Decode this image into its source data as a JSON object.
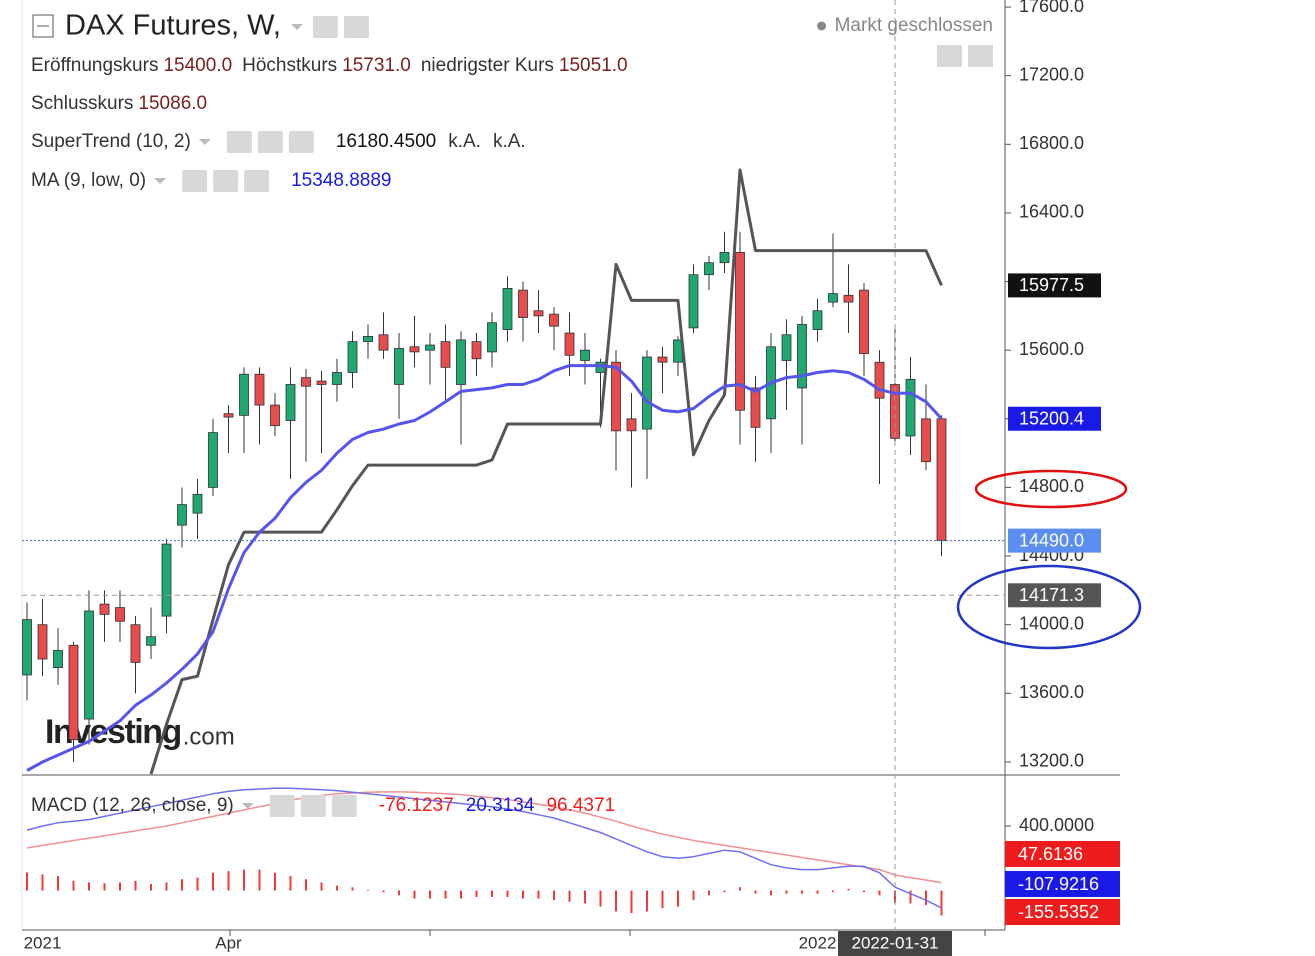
{
  "chart_data": {
    "type": "candlestick",
    "title": "DAX Futures, W,",
    "status": "Markt geschlossen",
    "ohlc_readout": [
      {
        "label": "Eröffnungskurs",
        "value": "15400.0"
      },
      {
        "label": "Höchstkurs",
        "value": "15731.0"
      },
      {
        "label": "niedrigster Kurs",
        "value": "15051.0"
      },
      {
        "label": "Schlusskurs",
        "value": "15086.0"
      }
    ],
    "categories": [
      null,
      "2021",
      null,
      null,
      null,
      null,
      null,
      null,
      null,
      null,
      null,
      null,
      null,
      "Apr",
      null,
      null,
      null,
      null,
      null,
      null,
      null,
      null,
      null,
      null,
      null,
      null,
      null,
      null,
      null,
      null,
      null,
      null,
      null,
      null,
      null,
      null,
      null,
      null,
      null,
      null,
      null,
      null,
      null,
      null,
      null,
      null,
      null,
      null,
      null,
      null,
      null,
      "2022",
      null,
      null,
      null,
      null,
      "2022-01-31",
      null,
      null,
      null
    ],
    "open": [
      13707,
      14000,
      13750,
      13880,
      13450,
      14120,
      14100,
      14000,
      13880,
      14050,
      14580,
      14650,
      14800,
      15230,
      15220,
      15460,
      15280,
      15190,
      15440,
      15420,
      15400,
      15470,
      15650,
      15690,
      15400,
      15620,
      15600,
      15650,
      15400,
      15650,
      15590,
      15720,
      15950,
      15830,
      15810,
      15700,
      15540,
      15470,
      15530,
      15200,
      15140,
      15560,
      15530,
      15730,
      16040,
      16110,
      16170,
      15380,
      15200,
      15540,
      15380,
      15720,
      15880,
      15920,
      15950,
      15530,
      15400,
      15100,
      15200,
      15200
    ],
    "high": [
      14130,
      14150,
      13980,
      13900,
      14200,
      14200,
      14200,
      14050,
      14100,
      14500,
      14800,
      14850,
      15200,
      15280,
      15500,
      15500,
      15350,
      15500,
      15490,
      15480,
      15550,
      15710,
      15750,
      15820,
      15700,
      15800,
      15700,
      15750,
      15710,
      15700,
      15820,
      16030,
      16000,
      15950,
      15850,
      15820,
      15700,
      15550,
      15600,
      15350,
      15600,
      15620,
      15680,
      16100,
      16150,
      16290,
      16290,
      15450,
      15700,
      15780,
      15800,
      15900,
      16280,
      16100,
      15990,
      15600,
      15731,
      15560,
      15400,
      15220
    ],
    "low": [
      13560,
      13700,
      13650,
      13200,
      13300,
      13900,
      13900,
      13600,
      13800,
      13950,
      14450,
      14500,
      14750,
      15000,
      15000,
      15050,
      15100,
      14850,
      14950,
      15000,
      15300,
      15380,
      15550,
      15550,
      15200,
      15500,
      15400,
      15300,
      15050,
      15450,
      15500,
      15650,
      15650,
      15700,
      15600,
      15450,
      15400,
      15150,
      14900,
      14800,
      14850,
      15350,
      15450,
      15700,
      15950,
      16050,
      15050,
      14950,
      15000,
      15250,
      15050,
      15650,
      15850,
      15700,
      15450,
      14820,
      15051,
      14990,
      14900,
      14400
    ],
    "close": [
      14030,
      13800,
      13850,
      13330,
      14080,
      14060,
      14020,
      13780,
      13930,
      14470,
      14700,
      14760,
      15120,
      15210,
      15460,
      15280,
      15160,
      15400,
      15390,
      15400,
      15470,
      15650,
      15680,
      15600,
      15610,
      15590,
      15630,
      15500,
      15660,
      15550,
      15760,
      15960,
      15790,
      15800,
      15740,
      15570,
      15600,
      15530,
      15130,
      15130,
      15560,
      15530,
      15660,
      16040,
      16110,
      16170,
      15250,
      15150,
      15620,
      15690,
      15750,
      15830,
      15930,
      15880,
      15580,
      15320,
      15086,
      15430,
      14950,
      14490
    ],
    "up_color": "#1fa971",
    "down_color": "#e84d4d",
    "ylim": [
      13124,
      17641
    ],
    "yticks": [
      {
        "value": 13200,
        "label": "13200.0"
      },
      {
        "value": 13600,
        "label": "13600.0"
      },
      {
        "value": 14000,
        "label": "14000.0"
      },
      {
        "value": 14400,
        "label": "14400.0"
      },
      {
        "value": 14800,
        "label": "14800.0"
      },
      {
        "value": 15200,
        "label": "15200.0"
      },
      {
        "value": 15600,
        "label": "15600.0"
      },
      {
        "value": 16000,
        "label": "16000.0"
      },
      {
        "value": 16400,
        "label": "16400.0"
      },
      {
        "value": 16800,
        "label": "16800.0"
      },
      {
        "value": 17200,
        "label": "17200.0"
      },
      {
        "value": 17600,
        "label": "17600.0"
      }
    ],
    "indicators": [
      {
        "label": "SuperTrend (10, 2)",
        "color": "#555555",
        "readout": "16180.4500",
        "notes": [
          "k.A.",
          "k.A."
        ],
        "values": [
          null,
          null,
          null,
          null,
          null,
          null,
          null,
          null,
          13130,
          13420,
          13680,
          13700,
          14030,
          14350,
          14540,
          14540,
          14540,
          14540,
          14540,
          14540,
          14670,
          14810,
          14930,
          14930,
          14930,
          14930,
          14930,
          14930,
          14930,
          14930,
          14960,
          15170,
          15170,
          15170,
          15170,
          15170,
          15170,
          15170,
          16100,
          15890,
          15890,
          15890,
          15890,
          14990,
          15190,
          15340,
          16650,
          16180.45,
          16180.45,
          16180.45,
          16180.45,
          16180.45,
          16180.45,
          16180.45,
          16180.45,
          16180.45,
          16180.45,
          16180.45,
          16180.45,
          15977.5
        ]
      },
      {
        "label": "MA (9, low, 0)",
        "color": "#5555ee",
        "readout": 15348.8889,
        "values": [
          13150,
          13200,
          13240,
          13280,
          13320,
          13380,
          13440,
          13530,
          13590,
          13660,
          13740,
          13830,
          13960,
          14210,
          14420,
          14540,
          14620,
          14740,
          14830,
          14900,
          15000,
          15080,
          15120,
          15140,
          15170,
          15190,
          15240,
          15300,
          15360,
          15370,
          15380,
          15400,
          15400,
          15430,
          15480,
          15510,
          15510,
          15510,
          15500,
          15420,
          15300,
          15250,
          15240,
          15260,
          15330,
          15390,
          15400,
          15360,
          15410,
          15440,
          15450,
          15470,
          15480,
          15470,
          15430,
          15370,
          15348.8889,
          15350,
          15300,
          15200.4
        ]
      }
    ],
    "last_price": {
      "value": 14490,
      "label": "14490.0"
    },
    "crosshair_price": 14171.3,
    "logo": {
      "brand": "Investing",
      "suffix": ".com"
    },
    "macd": {
      "label": "MACD (12, 26, close, 9)",
      "ylim": [
        -214,
        698
      ],
      "yticks": [
        {
          "value": 400,
          "label": "400.0000"
        }
      ],
      "readout": [
        -76.1237,
        20.3134,
        96.4371
      ],
      "histogram": {
        "color": "#f03a3a",
        "values": [
          112,
          100,
          90,
          60,
          50,
          45,
          50,
          60,
          40,
          50,
          70,
          80,
          110,
          120,
          130,
          130,
          110,
          90,
          70,
          50,
          30,
          20,
          5,
          -10,
          -30,
          -50,
          -50,
          -50,
          -50,
          -40,
          -40,
          -40,
          -50,
          -50,
          -60,
          -70,
          -80,
          -100,
          -130,
          -140,
          -130,
          -110,
          -100,
          -60,
          -30,
          -10,
          20,
          -20,
          -30,
          -20,
          -20,
          -20,
          -10,
          10,
          -10,
          -30,
          -76.1237,
          -80,
          -90,
          -155.5352
        ]
      },
      "macd_line": {
        "color": "#7070f0",
        "values": [
          375,
          400,
          420,
          430,
          440,
          460,
          480,
          500,
          520,
          540,
          560,
          580,
          600,
          615,
          625,
          630,
          635,
          635,
          630,
          625,
          620,
          610,
          600,
          590,
          580,
          570,
          560,
          550,
          540,
          530,
          520,
          505,
          490,
          470,
          450,
          420,
          390,
          360,
          320,
          280,
          240,
          210,
          200,
          210,
          230,
          250,
          240,
          200,
          160,
          140,
          130,
          130,
          140,
          150,
          150,
          110,
          20.3134,
          -20,
          -60,
          -107.9216
        ]
      },
      "signal_line": {
        "color": "#f09090",
        "values": [
          264,
          280,
          295,
          310,
          325,
          340,
          355,
          370,
          385,
          400,
          420,
          440,
          460,
          480,
          500,
          520,
          540,
          560,
          575,
          590,
          600,
          605,
          610,
          612,
          612,
          610,
          605,
          600,
          595,
          585,
          575,
          565,
          550,
          535,
          520,
          500,
          480,
          455,
          430,
          400,
          375,
          350,
          330,
          310,
          295,
          280,
          265,
          250,
          235,
          220,
          205,
          190,
          175,
          160,
          145,
          130,
          96.4371,
          80,
          65,
          47.6136
        ]
      }
    }
  }
}
